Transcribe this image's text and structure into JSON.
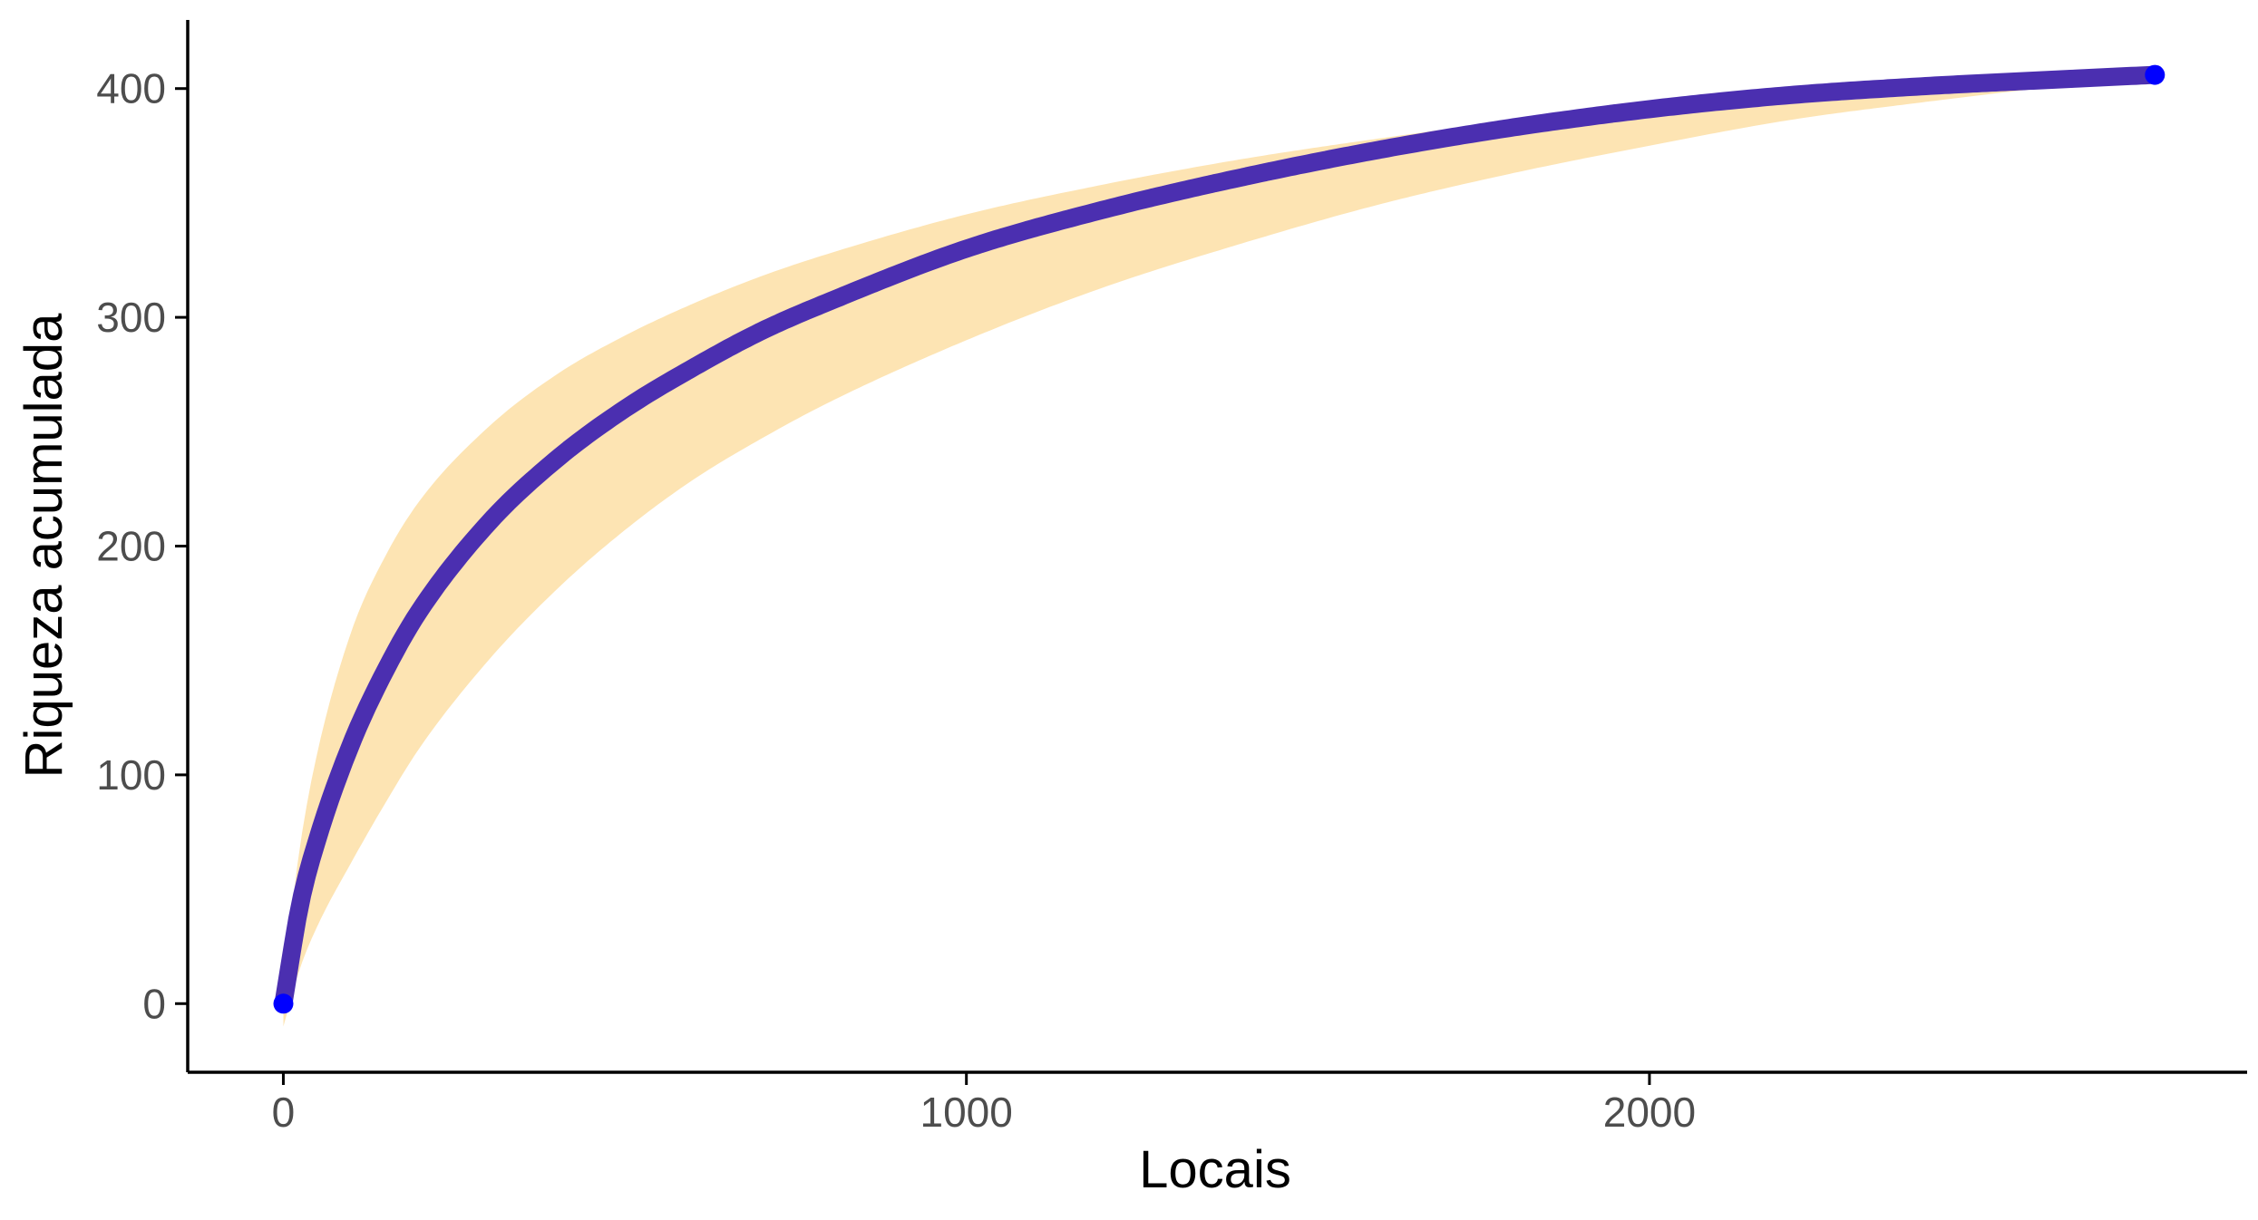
{
  "chart_data": {
    "type": "area",
    "title": "",
    "xlabel": "Locais",
    "ylabel": "Riqueza acumulada",
    "xlim": [
      -140,
      2875
    ],
    "ylim": [
      -30,
      430
    ],
    "x_ticks": [
      0,
      1000,
      2000
    ],
    "y_ticks": [
      0,
      100,
      200,
      300,
      400
    ],
    "x_tick_labels": [
      "0",
      "1000",
      "2000"
    ],
    "y_tick_labels": [
      "0",
      "100",
      "200",
      "300",
      "400"
    ],
    "grid": false,
    "legend": "none",
    "colors": {
      "band_fill": "#fde4b3",
      "line": "#4b2fb0",
      "line_ends": "#0000ff",
      "axis": "#000000",
      "tick_label": "#4d4d4d"
    },
    "series": [
      {
        "x": [
          0,
          25,
          50,
          100,
          150,
          200,
          300,
          400,
          500,
          600,
          700,
          800,
          1000,
          1200,
          1400,
          1600,
          1800,
          2000,
          2200,
          2400,
          2600,
          2740
        ],
        "y": [
          0,
          44,
          72,
          114,
          146,
          172,
          210,
          238,
          260,
          278,
          294,
          307,
          330,
          347,
          361,
          373,
          383,
          391,
          397,
          401,
          404,
          406
        ],
        "lower": [
          -10,
          16,
          34,
          62,
          88,
          112,
          150,
          181,
          207,
          229,
          247,
          263,
          290,
          313,
          332,
          349,
          363,
          375,
          386,
          394,
          401,
          405
        ],
        "upper": [
          10,
          70,
          110,
          163,
          196,
          220,
          252,
          275,
          292,
          306,
          318,
          328,
          345,
          358,
          369,
          378,
          386,
          393,
          398,
          402,
          405,
          407
        ]
      }
    ]
  }
}
